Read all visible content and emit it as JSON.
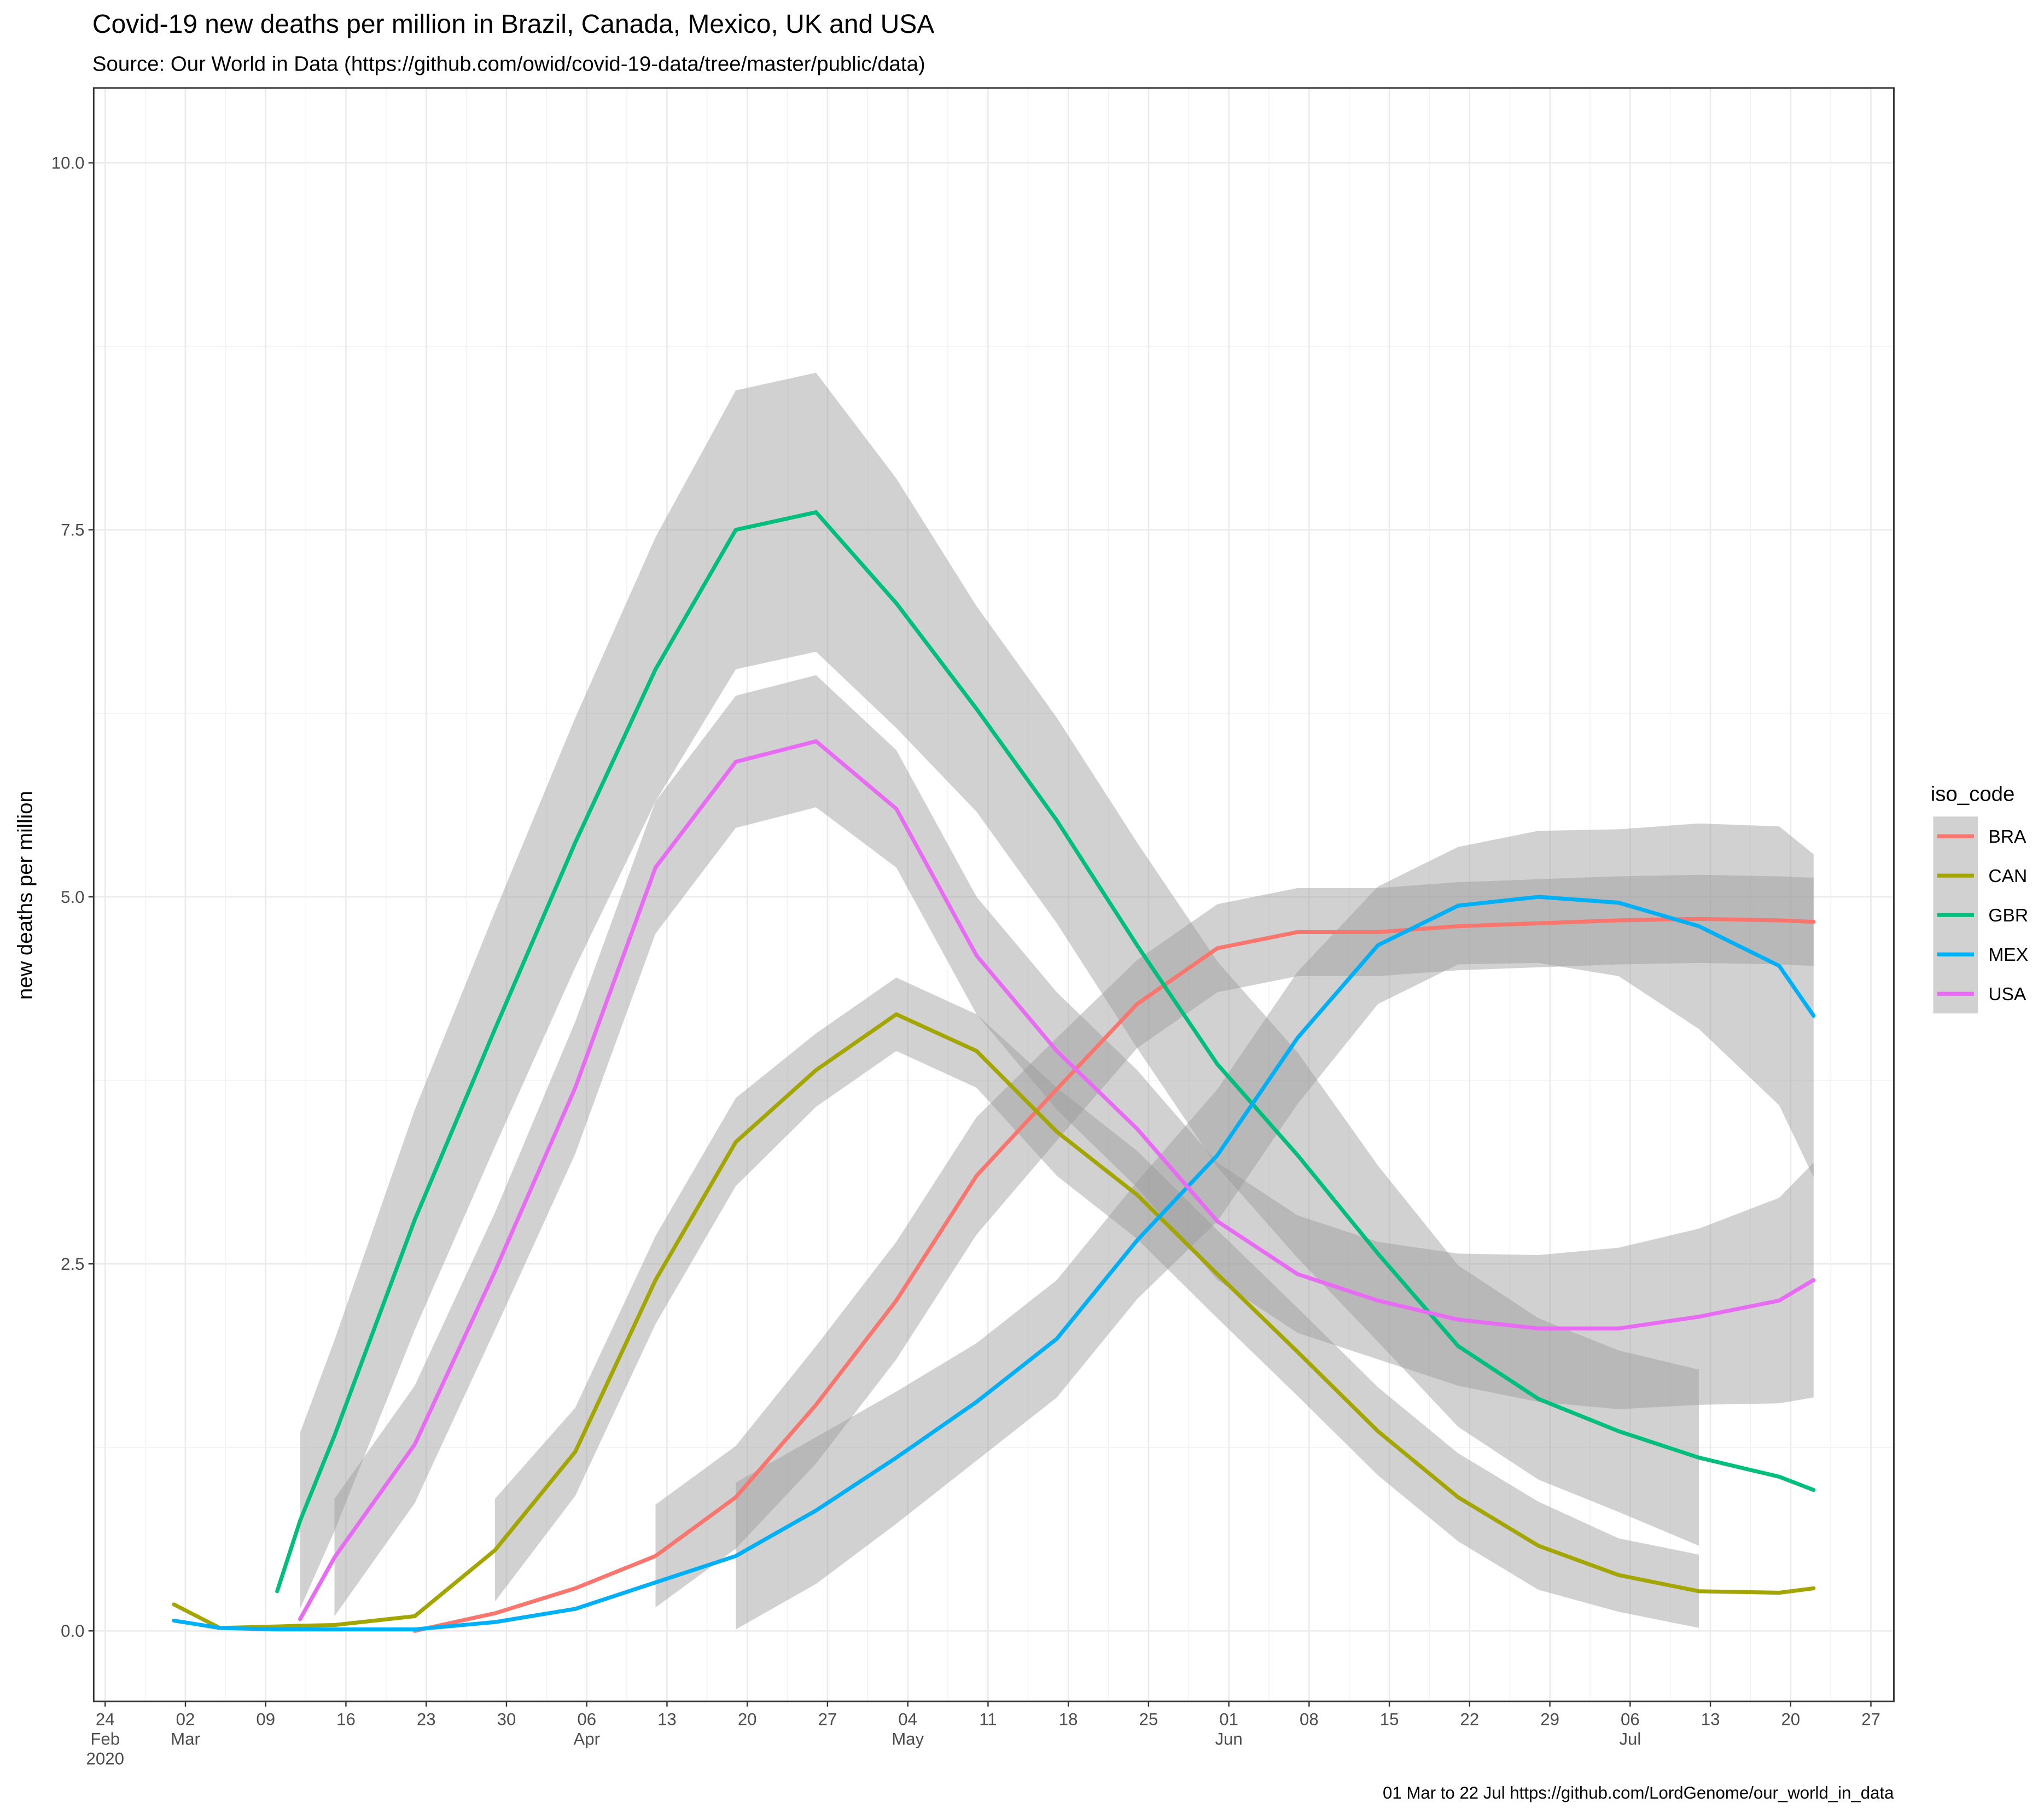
{
  "chart_data": {
    "type": "line",
    "title": "Covid-19 new deaths per million in Brazil, Canada, Mexico, UK and USA",
    "subtitle": "Source: Our World in Data  (https://github.com/owid/covid-19-data/tree/master/public/data)",
    "y_label": "new deaths per million",
    "caption": "01 Mar to 22 Jul https://github.com/LordGenome/our_world_in_data",
    "legend_title": "iso_code",
    "legend_position": "right",
    "grid": true,
    "band_color": "#999999",
    "x": [
      "2020-03-01",
      "2020-03-05",
      "2020-03-10",
      "2020-03-12",
      "2020-03-15",
      "2020-03-22",
      "2020-03-29",
      "2020-04-05",
      "2020-04-12",
      "2020-04-19",
      "2020-04-26",
      "2020-05-03",
      "2020-05-10",
      "2020-05-17",
      "2020-05-24",
      "2020-05-31",
      "2020-06-07",
      "2020-06-14",
      "2020-06-21",
      "2020-06-28",
      "2020-07-05",
      "2020-07-12",
      "2020-07-19",
      "2020-07-22"
    ],
    "xlim": [
      "2020-02-23",
      "2020-07-29"
    ],
    "xticks": [
      {
        "value": "2020-02-24",
        "label": "24\nFeb\n2020"
      },
      {
        "value": "2020-03-02",
        "label": "02\nMar"
      },
      {
        "value": "2020-03-09",
        "label": "09"
      },
      {
        "value": "2020-03-16",
        "label": "16"
      },
      {
        "value": "2020-03-23",
        "label": "23"
      },
      {
        "value": "2020-03-30",
        "label": "30"
      },
      {
        "value": "2020-04-06",
        "label": "06\nApr"
      },
      {
        "value": "2020-04-13",
        "label": "13"
      },
      {
        "value": "2020-04-20",
        "label": "20"
      },
      {
        "value": "2020-04-27",
        "label": "27"
      },
      {
        "value": "2020-05-04",
        "label": "04\nMay"
      },
      {
        "value": "2020-05-11",
        "label": "11"
      },
      {
        "value": "2020-05-18",
        "label": "18"
      },
      {
        "value": "2020-05-25",
        "label": "25"
      },
      {
        "value": "2020-06-01",
        "label": "01\nJun"
      },
      {
        "value": "2020-06-08",
        "label": "08"
      },
      {
        "value": "2020-06-15",
        "label": "15"
      },
      {
        "value": "2020-06-22",
        "label": "22"
      },
      {
        "value": "2020-06-29",
        "label": "29"
      },
      {
        "value": "2020-07-06",
        "label": "06\nJul"
      },
      {
        "value": "2020-07-13",
        "label": "13"
      },
      {
        "value": "2020-07-20",
        "label": "20"
      },
      {
        "value": "2020-07-27",
        "label": "27"
      }
    ],
    "ylim": [
      -0.48,
      10.51
    ],
    "yticks": [
      {
        "value": 0,
        "label": "0.0"
      },
      2.5,
      {
        "value": 5,
        "label": "5.0"
      },
      7.5,
      {
        "value": 10,
        "label": "10.0"
      }
    ],
    "series": [
      {
        "name": "BRA",
        "color": "#F8766D",
        "values": [
          null,
          null,
          null,
          null,
          null,
          0.0,
          0.12,
          0.29,
          0.51,
          0.91,
          1.54,
          2.25,
          3.1,
          3.69,
          4.27,
          4.65,
          4.76,
          4.76,
          4.8,
          4.82,
          4.84,
          4.85,
          4.84,
          4.83
        ],
        "lower": [
          null,
          null,
          null,
          null,
          null,
          null,
          null,
          null,
          0.16,
          0.56,
          1.14,
          1.85,
          2.7,
          3.34,
          3.97,
          4.35,
          4.46,
          4.46,
          4.5,
          4.52,
          4.54,
          4.55,
          4.54,
          4.53
        ],
        "upper": [
          null,
          null,
          null,
          null,
          null,
          null,
          null,
          null,
          0.86,
          1.26,
          1.94,
          2.65,
          3.5,
          4.04,
          4.57,
          4.95,
          5.06,
          5.06,
          5.1,
          5.12,
          5.14,
          5.15,
          5.14,
          5.13
        ]
      },
      {
        "name": "CAN",
        "color": "#A3A500",
        "values": [
          0.18,
          0.02,
          0.03,
          0.035,
          0.04,
          0.1,
          0.55,
          1.22,
          2.39,
          3.33,
          3.82,
          4.2,
          3.95,
          3.4,
          2.97,
          2.43,
          1.9,
          1.36,
          0.91,
          0.58,
          0.38,
          0.27,
          0.26,
          0.29
        ],
        "lower": [
          null,
          null,
          null,
          null,
          null,
          null,
          0.2,
          0.92,
          2.09,
          3.03,
          3.57,
          3.95,
          3.7,
          3.1,
          2.67,
          2.13,
          1.6,
          1.06,
          0.61,
          0.28,
          0.13,
          0.02,
          null,
          null
        ],
        "upper": [
          null,
          null,
          null,
          null,
          null,
          null,
          0.9,
          1.52,
          2.69,
          3.63,
          4.07,
          4.45,
          4.2,
          3.7,
          3.27,
          2.73,
          2.2,
          1.66,
          1.21,
          0.88,
          0.63,
          0.52,
          null,
          null
        ]
      },
      {
        "name": "GBR",
        "color": "#00BF7D",
        "values": [
          null,
          null,
          0.27,
          0.75,
          1.33,
          2.8,
          4.1,
          5.37,
          6.55,
          7.5,
          7.62,
          7.0,
          6.28,
          5.52,
          4.67,
          3.86,
          3.24,
          2.57,
          1.94,
          1.58,
          1.36,
          1.18,
          1.05,
          0.96
        ],
        "lower": [
          null,
          null,
          null,
          0.15,
          0.68,
          2.05,
          3.3,
          4.52,
          5.65,
          6.55,
          6.67,
          6.15,
          5.58,
          4.82,
          3.97,
          3.16,
          2.54,
          1.97,
          1.39,
          1.03,
          0.81,
          0.58,
          null,
          null
        ],
        "upper": [
          null,
          null,
          null,
          1.35,
          1.98,
          3.55,
          4.9,
          6.22,
          7.45,
          8.45,
          8.57,
          7.85,
          6.98,
          6.22,
          5.37,
          4.56,
          3.94,
          3.17,
          2.49,
          2.13,
          1.91,
          1.78,
          null,
          null
        ]
      },
      {
        "name": "MEX",
        "color": "#00B0F6",
        "values": [
          0.07,
          0.02,
          0.01,
          0.01,
          0.01,
          0.01,
          0.06,
          0.15,
          0.33,
          0.51,
          0.82,
          1.18,
          1.56,
          1.99,
          2.66,
          3.24,
          4.04,
          4.67,
          4.94,
          5.0,
          4.96,
          4.8,
          4.53,
          4.19
        ],
        "lower": [
          null,
          null,
          null,
          null,
          null,
          null,
          null,
          null,
          null,
          0.01,
          0.32,
          0.73,
          1.16,
          1.59,
          2.26,
          2.79,
          3.59,
          4.27,
          4.54,
          4.55,
          4.46,
          4.1,
          3.58,
          3.09
        ],
        "upper": [
          null,
          null,
          null,
          null,
          null,
          null,
          null,
          null,
          null,
          1.01,
          1.32,
          1.63,
          1.96,
          2.39,
          3.06,
          3.69,
          4.49,
          5.07,
          5.34,
          5.45,
          5.46,
          5.5,
          5.48,
          5.29
        ]
      },
      {
        "name": "USA",
        "color": "#E76BF3",
        "values": [
          null,
          null,
          null,
          0.08,
          0.5,
          1.27,
          2.45,
          3.7,
          5.2,
          5.92,
          6.06,
          5.6,
          4.6,
          3.95,
          3.42,
          2.79,
          2.43,
          2.25,
          2.12,
          2.06,
          2.06,
          2.14,
          2.25,
          2.39
        ],
        "lower": [
          null,
          null,
          null,
          null,
          0.1,
          0.87,
          2.05,
          3.25,
          4.75,
          5.47,
          5.61,
          5.2,
          4.2,
          3.55,
          3.02,
          2.39,
          2.03,
          1.85,
          1.67,
          1.56,
          1.51,
          1.54,
          1.55,
          1.59
        ],
        "upper": [
          null,
          null,
          null,
          null,
          0.9,
          1.67,
          2.85,
          4.15,
          5.65,
          6.37,
          6.51,
          6.0,
          5.0,
          4.35,
          3.82,
          3.19,
          2.83,
          2.65,
          2.57,
          2.56,
          2.61,
          2.74,
          2.95,
          3.19
        ]
      }
    ]
  }
}
